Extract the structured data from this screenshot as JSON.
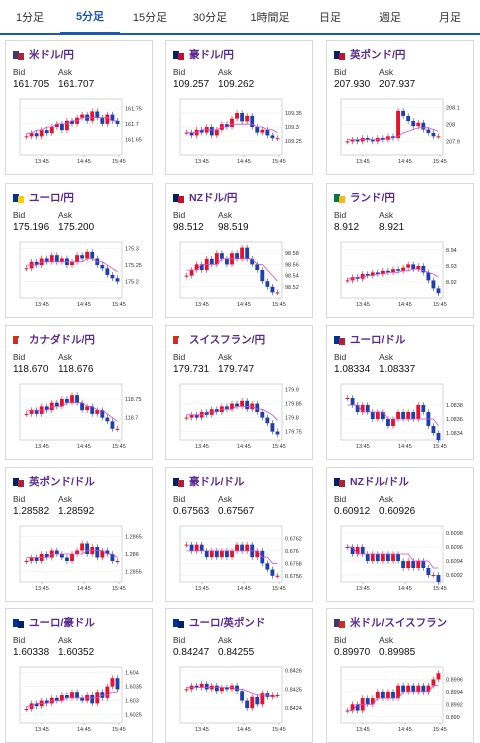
{
  "tabs": [
    {
      "label": "1分足",
      "active": false
    },
    {
      "label": "5分足",
      "active": true
    },
    {
      "label": "15分足",
      "active": false
    },
    {
      "label": "30分足",
      "active": false
    },
    {
      "label": "1時間足",
      "active": false
    },
    {
      "label": "日足",
      "active": false
    },
    {
      "label": "週足",
      "active": false
    },
    {
      "label": "月足",
      "active": false
    }
  ],
  "labels": {
    "bid": "Bid",
    "ask": "Ask"
  },
  "time_ticks": [
    "13:45",
    "14:45",
    "15:45"
  ],
  "pairs": [
    {
      "name": "米ドル/円",
      "flag": [
        "#3c3b6e",
        "#b22234"
      ],
      "bid": "161.705",
      "ask": "161.707",
      "chart_data": {
        "type": "candlestick",
        "y_ticks": [
          "161.75",
          "161.7",
          "161.65"
        ],
        "ylim": [
          161.6,
          161.78
        ],
        "closes": [
          161.66,
          161.67,
          161.66,
          161.68,
          161.67,
          161.69,
          161.7,
          161.68,
          161.71,
          161.7,
          161.72,
          161.73,
          161.71,
          161.74,
          161.72,
          161.7,
          161.73,
          161.71,
          161.7
        ],
        "ma": [
          161.67,
          161.67,
          161.68,
          161.68,
          161.69,
          161.69,
          161.7,
          161.7,
          161.7,
          161.71,
          161.71,
          161.72,
          161.72,
          161.72,
          161.72,
          161.72,
          161.72,
          161.71,
          161.71
        ]
      }
    },
    {
      "name": "豪ドル/円",
      "flag": [
        "#012169",
        "#c8102e"
      ],
      "bid": "109.257",
      "ask": "109.262",
      "chart_data": {
        "type": "candlestick",
        "y_ticks": [
          "109.35",
          "109.3",
          "109.25"
        ],
        "ylim": [
          109.2,
          109.4
        ],
        "closes": [
          109.28,
          109.27,
          109.29,
          109.28,
          109.3,
          109.27,
          109.29,
          109.31,
          109.3,
          109.33,
          109.35,
          109.32,
          109.34,
          109.3,
          109.28,
          109.29,
          109.27,
          109.26,
          109.26
        ],
        "ma": [
          109.28,
          109.28,
          109.28,
          109.29,
          109.29,
          109.29,
          109.29,
          109.3,
          109.3,
          109.31,
          109.31,
          109.31,
          109.31,
          109.31,
          109.3,
          109.3,
          109.29,
          109.29,
          109.28
        ]
      }
    },
    {
      "name": "英ポンド/円",
      "flag": [
        "#012169",
        "#c8102e"
      ],
      "bid": "207.930",
      "ask": "207.937",
      "chart_data": {
        "type": "candlestick",
        "y_ticks": [
          "208.1",
          "208",
          "207.9"
        ],
        "ylim": [
          207.82,
          208.15
        ],
        "closes": [
          207.9,
          207.91,
          207.9,
          207.92,
          207.91,
          207.9,
          207.92,
          207.91,
          207.93,
          207.92,
          208.08,
          208.05,
          208.02,
          207.99,
          208.01,
          207.97,
          207.95,
          207.93,
          207.93
        ],
        "ma": [
          207.91,
          207.91,
          207.91,
          207.91,
          207.91,
          207.91,
          207.91,
          207.91,
          207.92,
          207.92,
          207.93,
          207.95,
          207.96,
          207.97,
          207.98,
          207.98,
          207.98,
          207.97,
          207.96
        ]
      }
    },
    {
      "name": "ユーロ/円",
      "flag": [
        "#003399",
        "#ffcc00"
      ],
      "bid": "175.196",
      "ask": "175.200",
      "chart_data": {
        "type": "candlestick",
        "y_ticks": [
          "175.3",
          "175.25",
          "175.2"
        ],
        "ylim": [
          175.15,
          175.32
        ],
        "closes": [
          175.24,
          175.26,
          175.25,
          175.27,
          175.26,
          175.28,
          175.26,
          175.27,
          175.25,
          175.26,
          175.28,
          175.27,
          175.29,
          175.27,
          175.25,
          175.24,
          175.22,
          175.21,
          175.2
        ],
        "ma": [
          175.25,
          175.25,
          175.25,
          175.26,
          175.26,
          175.26,
          175.26,
          175.26,
          175.26,
          175.26,
          175.26,
          175.26,
          175.27,
          175.27,
          175.26,
          175.26,
          175.25,
          175.24,
          175.23
        ]
      }
    },
    {
      "name": "NZドル/円",
      "flag": [
        "#012169",
        "#c8102e"
      ],
      "bid": "98.512",
      "ask": "98.519",
      "chart_data": {
        "type": "candlestick",
        "y_ticks": [
          "98.58",
          "98.56",
          "98.54",
          "98.52"
        ],
        "ylim": [
          98.5,
          98.6
        ],
        "closes": [
          98.54,
          98.55,
          98.56,
          98.55,
          98.57,
          98.56,
          98.58,
          98.57,
          98.56,
          98.58,
          98.57,
          98.59,
          98.57,
          98.56,
          98.55,
          98.53,
          98.52,
          98.51,
          98.51
        ],
        "ma": [
          98.55,
          98.55,
          98.55,
          98.56,
          98.56,
          98.56,
          98.56,
          98.57,
          98.57,
          98.57,
          98.57,
          98.57,
          98.57,
          98.57,
          98.56,
          98.56,
          98.55,
          98.54,
          98.53
        ]
      }
    },
    {
      "name": "ランド/円",
      "flag": [
        "#007a4d",
        "#ffb612"
      ],
      "bid": "8.912",
      "ask": "8.921",
      "chart_data": {
        "type": "candlestick",
        "y_ticks": [
          "8.94",
          "8.93",
          "8.92"
        ],
        "ylim": [
          8.91,
          8.945
        ],
        "closes": [
          8.921,
          8.923,
          8.922,
          8.925,
          8.924,
          8.926,
          8.925,
          8.927,
          8.926,
          8.928,
          8.927,
          8.929,
          8.931,
          8.928,
          8.93,
          8.926,
          8.921,
          8.916,
          8.913
        ],
        "ma": [
          8.922,
          8.922,
          8.923,
          8.923,
          8.924,
          8.924,
          8.925,
          8.925,
          8.926,
          8.926,
          8.926,
          8.927,
          8.927,
          8.928,
          8.928,
          8.927,
          8.926,
          8.925,
          8.923
        ]
      }
    },
    {
      "name": "カナダドル/円",
      "flag": [
        "#d52b1e",
        "#ffffff"
      ],
      "bid": "118.670",
      "ask": "118.676",
      "chart_data": {
        "type": "candlestick",
        "y_ticks": [
          "118.75",
          "118.7"
        ],
        "ylim": [
          118.64,
          118.79
        ],
        "closes": [
          118.71,
          118.72,
          118.71,
          118.73,
          118.72,
          118.74,
          118.73,
          118.75,
          118.74,
          118.76,
          118.74,
          118.72,
          118.73,
          118.71,
          118.72,
          118.7,
          118.69,
          118.67,
          118.67
        ],
        "ma": [
          118.72,
          118.72,
          118.72,
          118.72,
          118.72,
          118.73,
          118.73,
          118.73,
          118.74,
          118.74,
          118.74,
          118.74,
          118.73,
          118.73,
          118.72,
          118.72,
          118.71,
          118.7,
          118.69
        ]
      }
    },
    {
      "name": "スイスフラン/円",
      "flag": [
        "#d52b1e",
        "#ffffff"
      ],
      "bid": "179.731",
      "ask": "179.747",
      "chart_data": {
        "type": "candlestick",
        "y_ticks": [
          "179.9",
          "179.85",
          "179.8",
          "179.75"
        ],
        "ylim": [
          179.72,
          179.92
        ],
        "closes": [
          179.8,
          179.81,
          179.8,
          179.82,
          179.81,
          179.83,
          179.82,
          179.84,
          179.83,
          179.85,
          179.84,
          179.86,
          179.83,
          179.85,
          179.82,
          179.8,
          179.78,
          179.75,
          179.74
        ],
        "ma": [
          179.81,
          179.81,
          179.81,
          179.81,
          179.82,
          179.82,
          179.82,
          179.83,
          179.83,
          179.83,
          179.84,
          179.84,
          179.84,
          179.84,
          179.83,
          179.83,
          179.82,
          179.81,
          179.79
        ]
      }
    },
    {
      "name": "ユーロ/ドル",
      "flag": [
        "#003399",
        "#b22234"
      ],
      "bid": "1.08334",
      "ask": "1.08337",
      "chart_data": {
        "type": "candlestick",
        "y_ticks": [
          "1.0838",
          "1.0836",
          "1.0834"
        ],
        "ylim": [
          1.0833,
          1.0841
        ],
        "closes": [
          1.0839,
          1.0838,
          1.0837,
          1.0838,
          1.0837,
          1.0836,
          1.0837,
          1.0836,
          1.0835,
          1.0836,
          1.0837,
          1.0836,
          1.0837,
          1.0836,
          1.0838,
          1.0837,
          1.0835,
          1.0834,
          1.0833
        ],
        "ma": [
          1.0838,
          1.0838,
          1.0838,
          1.0837,
          1.0837,
          1.0837,
          1.0837,
          1.0837,
          1.0836,
          1.0836,
          1.0836,
          1.0836,
          1.0836,
          1.0836,
          1.0836,
          1.0836,
          1.0836,
          1.0836,
          1.0835
        ]
      }
    },
    {
      "name": "英ポンド/ドル",
      "flag": [
        "#012169",
        "#b22234"
      ],
      "bid": "1.28582",
      "ask": "1.28592",
      "chart_data": {
        "type": "candlestick",
        "y_ticks": [
          "1.2865",
          "1.286",
          "1.2855"
        ],
        "ylim": [
          1.2852,
          1.2868
        ],
        "closes": [
          1.2858,
          1.2859,
          1.2858,
          1.286,
          1.2859,
          1.2861,
          1.286,
          1.2859,
          1.2858,
          1.286,
          1.2861,
          1.2863,
          1.286,
          1.2862,
          1.2859,
          1.2861,
          1.286,
          1.2858,
          1.2858
        ],
        "ma": [
          1.2859,
          1.2859,
          1.2859,
          1.2859,
          1.2859,
          1.286,
          1.286,
          1.286,
          1.286,
          1.286,
          1.286,
          1.286,
          1.2861,
          1.2861,
          1.2861,
          1.2861,
          1.286,
          1.286,
          1.2859
        ]
      }
    },
    {
      "name": "豪ドル/ドル",
      "flag": [
        "#012169",
        "#b22234"
      ],
      "bid": "0.67563",
      "ask": "0.67567",
      "chart_data": {
        "type": "candlestick",
        "y_ticks": [
          "0.6762",
          "0.676",
          "0.6758",
          "0.6756"
        ],
        "ylim": [
          0.6755,
          0.6764
        ],
        "closes": [
          0.6761,
          0.676,
          0.6761,
          0.676,
          0.6759,
          0.676,
          0.6759,
          0.676,
          0.6759,
          0.676,
          0.6761,
          0.676,
          0.6761,
          0.6759,
          0.676,
          0.6758,
          0.6757,
          0.6756,
          0.6756
        ],
        "ma": [
          0.676,
          0.676,
          0.676,
          0.676,
          0.676,
          0.676,
          0.676,
          0.676,
          0.676,
          0.676,
          0.676,
          0.676,
          0.676,
          0.676,
          0.676,
          0.6759,
          0.6759,
          0.6758,
          0.6758
        ]
      }
    },
    {
      "name": "NZドル/ドル",
      "flag": [
        "#012169",
        "#b22234"
      ],
      "bid": "0.60912",
      "ask": "0.60926",
      "chart_data": {
        "type": "candlestick",
        "y_ticks": [
          "0.6098",
          "0.6096",
          "0.6094",
          "0.6092"
        ],
        "ylim": [
          0.6091,
          0.6099
        ],
        "closes": [
          0.6096,
          0.6095,
          0.6096,
          0.6095,
          0.6094,
          0.6095,
          0.6094,
          0.6095,
          0.6094,
          0.6095,
          0.6094,
          0.6093,
          0.6094,
          0.6093,
          0.6094,
          0.6093,
          0.6092,
          0.6092,
          0.6091
        ],
        "ma": [
          0.6096,
          0.6096,
          0.6095,
          0.6095,
          0.6095,
          0.6095,
          0.6095,
          0.6095,
          0.6095,
          0.6095,
          0.6095,
          0.6095,
          0.6095,
          0.6094,
          0.6094,
          0.6094,
          0.6094,
          0.6093,
          0.6093
        ]
      }
    },
    {
      "name": "ユーロ/豪ドル",
      "flag": [
        "#003399",
        "#012169"
      ],
      "bid": "1.60338",
      "ask": "1.60352",
      "chart_data": {
        "type": "candlestick",
        "y_ticks": [
          "1.604",
          "1.6035",
          "1.603",
          "1.6025"
        ],
        "ylim": [
          1.6022,
          1.6042
        ],
        "closes": [
          1.6027,
          1.6029,
          1.6028,
          1.603,
          1.6029,
          1.6031,
          1.603,
          1.6032,
          1.6031,
          1.6033,
          1.6031,
          1.603,
          1.6032,
          1.6029,
          1.6033,
          1.6031,
          1.6035,
          1.6038,
          1.6034
        ],
        "ma": [
          1.6028,
          1.6028,
          1.6029,
          1.6029,
          1.6029,
          1.603,
          1.603,
          1.603,
          1.6031,
          1.6031,
          1.6031,
          1.6031,
          1.6031,
          1.6031,
          1.6031,
          1.6032,
          1.6032,
          1.6033,
          1.6033
        ]
      }
    },
    {
      "name": "ユーロ/英ポンド",
      "flag": [
        "#003399",
        "#012169"
      ],
      "bid": "0.84247",
      "ask": "0.84255",
      "chart_data": {
        "type": "candlestick",
        "y_ticks": [
          "0.8425",
          "0.8426",
          "0.8424"
        ],
        "ylim": [
          0.84232,
          0.84262
        ],
        "closes": [
          0.8425,
          0.84252,
          0.84251,
          0.84253,
          0.8425,
          0.84252,
          0.84249,
          0.84251,
          0.8425,
          0.84252,
          0.84249,
          0.84244,
          0.8424,
          0.84246,
          0.84242,
          0.84248,
          0.84246,
          0.84247,
          0.84247
        ],
        "ma": [
          0.84251,
          0.84251,
          0.84251,
          0.84251,
          0.84251,
          0.84251,
          0.84251,
          0.84251,
          0.84251,
          0.84251,
          0.8425,
          0.8425,
          0.84249,
          0.84248,
          0.84247,
          0.84247,
          0.84247,
          0.84246,
          0.84246
        ]
      }
    },
    {
      "name": "米ドル/スイスフラン",
      "flag": [
        "#3c3b6e",
        "#d52b1e"
      ],
      "bid": "0.89970",
      "ask": "0.89985",
      "chart_data": {
        "type": "candlestick",
        "y_ticks": [
          "0.8996",
          "0.8994",
          "0.8992",
          "0.899"
        ],
        "ylim": [
          0.8989,
          0.8998
        ],
        "closes": [
          0.8991,
          0.8992,
          0.8991,
          0.8993,
          0.8992,
          0.8993,
          0.8994,
          0.8993,
          0.8994,
          0.8993,
          0.8995,
          0.8994,
          0.8995,
          0.8994,
          0.8995,
          0.8994,
          0.8995,
          0.8996,
          0.8997
        ],
        "ma": [
          0.8991,
          0.8991,
          0.8992,
          0.8992,
          0.8992,
          0.8992,
          0.8993,
          0.8993,
          0.8993,
          0.8993,
          0.8993,
          0.8994,
          0.8994,
          0.8994,
          0.8994,
          0.8994,
          0.8994,
          0.8995,
          0.8995
        ]
      }
    }
  ]
}
